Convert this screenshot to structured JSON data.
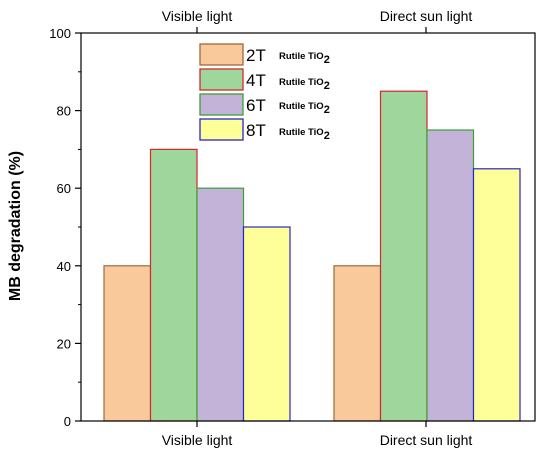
{
  "chart_data": {
    "type": "bar",
    "categories": [
      "Visible light",
      "Direct sun light"
    ],
    "top_labels": [
      "Visible light",
      "Direct sun light"
    ],
    "series": [
      {
        "name": "2T",
        "suffix": "Rutile TiO",
        "subscript": "2",
        "values": [
          40,
          40
        ],
        "fill": "#f9c89b",
        "stroke": "#9b6a3d"
      },
      {
        "name": "4T",
        "suffix": "Rutile TiO",
        "subscript": "2",
        "values": [
          70,
          85
        ],
        "fill": "#9ed69c",
        "stroke": "#d8262c"
      },
      {
        "name": "6T",
        "suffix": "Rutile TiO",
        "subscript": "2",
        "values": [
          60,
          75
        ],
        "fill": "#c3b3d8",
        "stroke": "#3aa035"
      },
      {
        "name": "8T",
        "suffix": "Rutile TiO",
        "subscript": "2",
        "values": [
          50,
          65
        ],
        "fill": "#ffff99",
        "stroke": "#2727c9"
      }
    ],
    "ylabel": "MB degradation (%)",
    "xlabel": "",
    "ylim": [
      0,
      100
    ],
    "yticks": [
      0,
      20,
      40,
      60,
      80,
      100
    ],
    "legend_position": "top-center"
  }
}
